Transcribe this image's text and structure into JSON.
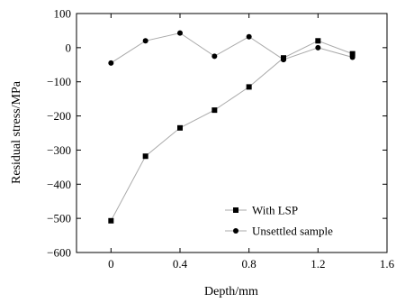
{
  "chart_data": {
    "type": "line",
    "xlabel": "Depth/mm",
    "ylabel": "Residual stress/MPa",
    "xlim": [
      -0.2,
      1.6
    ],
    "ylim": [
      -600,
      100
    ],
    "xticks": [
      0,
      0.4,
      0.8,
      1.2,
      1.6
    ],
    "xtick_labels": [
      "0",
      "0.4",
      "0.8",
      "1.2",
      "1.6"
    ],
    "yticks": [
      -600,
      -500,
      -400,
      -300,
      -200,
      -100,
      0,
      100
    ],
    "ytick_labels": [
      "−600",
      "−500",
      "−400",
      "−300",
      "−200",
      "−100",
      "0",
      "100"
    ],
    "grid": false,
    "legend_position": "bottom-right",
    "series": [
      {
        "name": "With LSP",
        "marker": "square",
        "color": "#000000",
        "x": [
          0,
          0.2,
          0.4,
          0.6,
          0.8,
          1.0,
          1.2,
          1.4
        ],
        "y": [
          -507,
          -318,
          -235,
          -183,
          -115,
          -30,
          20,
          -18
        ]
      },
      {
        "name": "Unsettled sample",
        "marker": "circle",
        "color": "#000000",
        "x": [
          0,
          0.2,
          0.4,
          0.6,
          0.8,
          1.0,
          1.2,
          1.4
        ],
        "y": [
          -45,
          20,
          43,
          -25,
          32,
          -35,
          0,
          -28
        ]
      }
    ],
    "line_color": "#aaaaaa"
  }
}
